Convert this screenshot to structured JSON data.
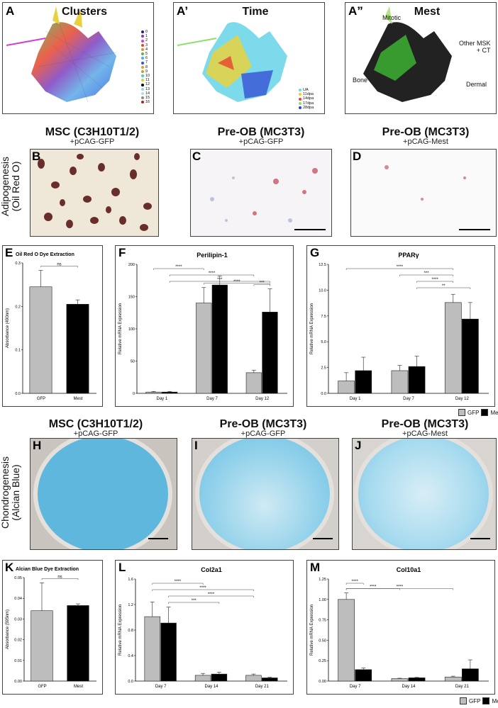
{
  "umap": {
    "a": {
      "label": "A",
      "title": "Clusters",
      "legend": [
        "0",
        "1",
        "2",
        "3",
        "4",
        "5",
        "6",
        "7",
        "8",
        "9",
        "10",
        "11",
        "12",
        "13",
        "14",
        "15",
        "16"
      ],
      "colors": [
        "#1f1f8f",
        "#7b3fbf",
        "#d33fd3",
        "#e8452c",
        "#e88a2c",
        "#53b848",
        "#5aa9e6",
        "#2c55e8",
        "#f29b2d",
        "#b8a82c",
        "#3fd3c4",
        "#d3d33f",
        "#000000",
        "#9ad3e0",
        "#c3d3f0",
        "#8a8a8a",
        "#b22222"
      ]
    },
    "b": {
      "label": "A’",
      "title": "Time",
      "legend": [
        "UA",
        "11dpa",
        "14dpa",
        "17dpa",
        "28dpa"
      ],
      "colors": [
        "#6fd6e8",
        "#e8d13f",
        "#e8452c",
        "#8ee06a",
        "#2c3fd3"
      ]
    },
    "c": {
      "label": "A”",
      "title": "Mest",
      "annotations": {
        "mitotic": "Mitotic",
        "other": "Other MSK\n+ CT",
        "bone": "Bone",
        "dermal": "Dermal"
      }
    }
  },
  "row_adipo": {
    "row_label_1": "Adipogenesis",
    "row_label_2": "(Oil Red O)",
    "b": {
      "label": "B",
      "title": "MSC (C3H10T1/2)",
      "subtitle": "+pCAG-GFP"
    },
    "c": {
      "label": "C",
      "title": "Pre-OB (MC3T3)",
      "subtitle": "+pCAG-GFP"
    },
    "d": {
      "label": "D",
      "title": "Pre-OB (MC3T3)",
      "subtitle": "+pCAG-Mest"
    }
  },
  "row_chondro": {
    "row_label_1": "Chondrogenesis",
    "row_label_2": "(Alcian Blue)",
    "h": {
      "label": "H",
      "title": "MSC (C3H10T1/2)",
      "subtitle": "+pCAG-GFP"
    },
    "i": {
      "label": "I",
      "title": "Pre-OB (MC3T3)",
      "subtitle": "+pCAG-GFP"
    },
    "j": {
      "label": "J",
      "title": "Pre-OB (MC3T3)",
      "subtitle": "+pCAG-Mest"
    }
  },
  "legend": {
    "gfp": "GFP",
    "mest": "Mest",
    "gfp_color": "#bdbdbd",
    "mest_color": "#000000"
  },
  "chart_data": [
    {
      "id": "E",
      "type": "bar",
      "title": "Oil Red O Dye Extraction",
      "ylabel": "Absorbance (490nm)",
      "categories": [
        "GFP",
        "Mest"
      ],
      "values": [
        0.245,
        0.205
      ],
      "errors": [
        0.038,
        0.01
      ],
      "ylim": [
        0,
        0.3
      ],
      "yticks": [
        "0.0",
        "0.1",
        "0.2",
        "0.3"
      ],
      "sig": [
        {
          "a": 0,
          "b": 1,
          "text": "ns"
        }
      ]
    },
    {
      "id": "F",
      "type": "bar",
      "title": "Perilipin-1",
      "ylabel": "Relative mRNA Expression",
      "categories": [
        "Day 1",
        "Day 7",
        "Day 12"
      ],
      "series": [
        {
          "name": "GFP",
          "values": [
            2,
            140,
            32
          ],
          "errors": [
            1,
            24,
            4
          ]
        },
        {
          "name": "Mest",
          "values": [
            2,
            168,
            126
          ],
          "errors": [
            1,
            14,
            36
          ]
        }
      ],
      "ylim": [
        0,
        200
      ],
      "yticks": [
        "0",
        "50",
        "100",
        "150",
        "200"
      ],
      "sig": [
        {
          "a": 0,
          "b": 2,
          "text": "****"
        },
        {
          "a": 1,
          "b": 4,
          "text": "****"
        },
        {
          "a": 1,
          "b": 5,
          "text": "***"
        },
        {
          "a": 2,
          "b": 5,
          "text": "****"
        },
        {
          "a": 4,
          "b": 5,
          "text": "***"
        }
      ]
    },
    {
      "id": "G",
      "type": "bar",
      "title": "PPARγ",
      "ylabel": "Relative mRNA Expression",
      "categories": [
        "Day 1",
        "Day 7",
        "Day 12"
      ],
      "series": [
        {
          "name": "GFP",
          "values": [
            1.2,
            2.2,
            8.8
          ],
          "errors": [
            0.8,
            0.5,
            0.8
          ]
        },
        {
          "name": "Mest",
          "values": [
            2.2,
            2.6,
            7.2
          ],
          "errors": [
            1.3,
            1.0,
            1.6
          ]
        }
      ],
      "ylim": [
        0,
        12.5
      ],
      "yticks": [
        "0.0",
        "2.5",
        "5.0",
        "7.5",
        "10.0",
        "12.5"
      ],
      "sig": [
        {
          "a": 0,
          "b": 4,
          "text": "****"
        },
        {
          "a": 2,
          "b": 4,
          "text": "***"
        },
        {
          "a": 3,
          "b": 4,
          "text": "****"
        },
        {
          "a": 3,
          "b": 5,
          "text": "**"
        }
      ]
    },
    {
      "id": "K",
      "type": "bar",
      "title": "Alcian Blue Dye Extraction",
      "ylabel": "Absorbance (595nm)",
      "categories": [
        "GFP",
        "Mest"
      ],
      "values": [
        0.034,
        0.0365
      ],
      "errors": [
        0.0135,
        0.0008
      ],
      "ylim": [
        0,
        0.05
      ],
      "yticks": [
        "0.00",
        "0.01",
        "0.02",
        "0.03",
        "0.04",
        "0.05"
      ],
      "sig": [
        {
          "a": 0,
          "b": 1,
          "text": "ns"
        }
      ]
    },
    {
      "id": "L",
      "type": "bar",
      "title": "Col2a1",
      "ylabel": "Relative mRNA Expression",
      "categories": [
        "Day 7",
        "Day 14",
        "Day 21"
      ],
      "series": [
        {
          "name": "GFP",
          "values": [
            1.01,
            0.09,
            0.09
          ],
          "errors": [
            0.23,
            0.03,
            0.02
          ]
        },
        {
          "name": "Mest",
          "values": [
            0.91,
            0.11,
            0.05
          ],
          "errors": [
            0.25,
            0.03,
            0.01
          ]
        }
      ],
      "ylim": [
        0,
        1.6
      ],
      "yticks": [
        "0.0",
        "0.4",
        "0.8",
        "1.2",
        "1.6"
      ],
      "sig": [
        {
          "a": 0,
          "b": 2,
          "text": "****"
        },
        {
          "a": 0,
          "b": 4,
          "text": "****"
        },
        {
          "a": 1,
          "b": 4,
          "text": "****"
        },
        {
          "a": 1,
          "b": 3,
          "text": "***"
        }
      ]
    },
    {
      "id": "M",
      "type": "bar",
      "title": "Col10a1",
      "ylabel": "Relative mRNA Expression",
      "categories": [
        "Day 7",
        "Day 14",
        "Day 21"
      ],
      "series": [
        {
          "name": "GFP",
          "values": [
            1.0,
            0.03,
            0.05
          ],
          "errors": [
            0.08,
            0.005,
            0.01
          ]
        },
        {
          "name": "Mest",
          "values": [
            0.14,
            0.04,
            0.15
          ],
          "errors": [
            0.02,
            0.005,
            0.11
          ]
        }
      ],
      "ylim": [
        0,
        1.25
      ],
      "yticks": [
        "0.00",
        "0.25",
        "0.50",
        "0.75",
        "1.00",
        "1.25"
      ],
      "sig": [
        {
          "a": 0,
          "b": 1,
          "text": "****"
        },
        {
          "a": 0,
          "b": 2,
          "text": "****"
        },
        {
          "a": 0,
          "b": 4,
          "text": "****"
        }
      ]
    }
  ]
}
